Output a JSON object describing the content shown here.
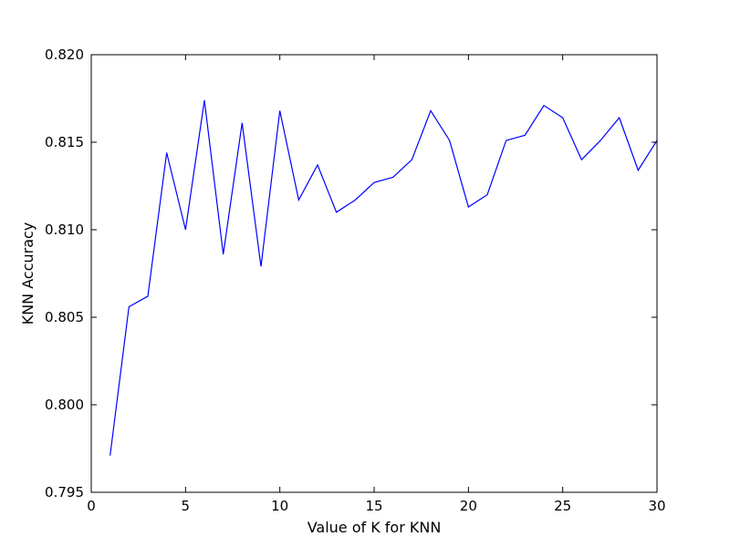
{
  "chart_data": {
    "type": "line",
    "xlabel": "Value of K for KNN",
    "ylabel": "KNN Accuracy",
    "xlim": [
      0,
      30
    ],
    "ylim": [
      0.795,
      0.82
    ],
    "xticks": [
      0,
      5,
      10,
      15,
      20,
      25,
      30
    ],
    "xtick_labels": [
      "0",
      "5",
      "10",
      "15",
      "20",
      "25",
      "30"
    ],
    "yticks": [
      0.795,
      0.8,
      0.805,
      0.81,
      0.815,
      0.82
    ],
    "ytick_labels": [
      "0.795",
      "0.800",
      "0.805",
      "0.810",
      "0.815",
      "0.820"
    ],
    "grid": false,
    "legend": "none",
    "line_color": "#0000ff",
    "series": [
      {
        "x": [
          1,
          2,
          3,
          4,
          5,
          6,
          7,
          8,
          9,
          10,
          11,
          12,
          13,
          14,
          15,
          16,
          17,
          18,
          19,
          20,
          21,
          22,
          23,
          24,
          25,
          26,
          27,
          28,
          29,
          30
        ],
        "values": [
          0.7971,
          0.8056,
          0.8062,
          0.8144,
          0.81,
          0.8174,
          0.8086,
          0.8161,
          0.8079,
          0.8168,
          0.8117,
          0.8137,
          0.811,
          0.8117,
          0.8127,
          0.813,
          0.814,
          0.8168,
          0.8151,
          0.8113,
          0.812,
          0.8151,
          0.8154,
          0.8171,
          0.8164,
          0.814,
          0.8151,
          0.8164,
          0.8134,
          0.8151
        ]
      }
    ]
  }
}
